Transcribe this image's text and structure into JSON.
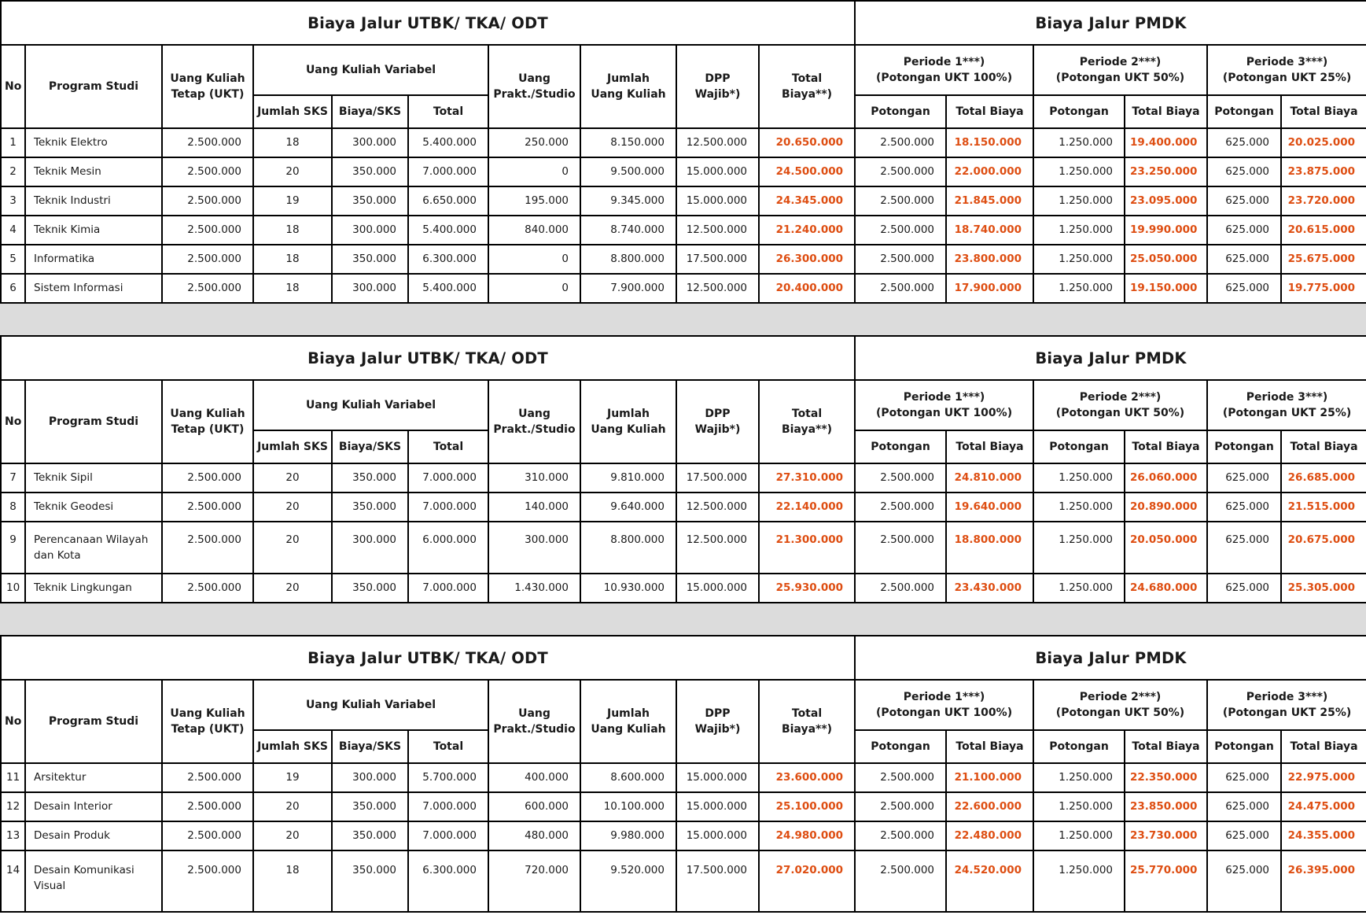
{
  "colors": {
    "accent": "#DE4E12",
    "separator": "#DCDCDC",
    "border": "#000000",
    "text": "#1A1A1A"
  },
  "titles": {
    "utbk": "Biaya Jalur UTBK/ TKA/ ODT",
    "pmdk": "Biaya Jalur PMDK"
  },
  "header": {
    "no": "No",
    "program_studi": "Program Studi",
    "ukt": "Uang Kuliah\nTetap (UKT)",
    "uang_kuliah_variabel": "Uang Kuliah Variabel",
    "jumlah_sks": "Jumlah SKS",
    "biaya_sks": "Biaya/SKS",
    "total": "Total",
    "uang_prakt": "Uang\nPrakt./Studio",
    "jumlah_uang_kuliah": "Jumlah\nUang Kuliah",
    "dpp": "DPP\nWajib*)",
    "total_biaya": "Total\nBiaya**)",
    "periode_1": "Periode 1***)\n(Potongan UKT 100%)",
    "periode_2": "Periode 2***)\n(Potongan UKT 50%)",
    "periode_3": "Periode 3***)\n(Potongan UKT 25%)",
    "potongan": "Potongan",
    "total_biaya_pmdk": "Total Biaya"
  },
  "tables": [
    {
      "rows": [
        {
          "no": "1",
          "program": "Teknik Elektro",
          "ukt": "2.500.000",
          "jumlah_sks": "18",
          "biaya_sks": "300.000",
          "total_variabel": "5.400.000",
          "uang_prakt": "250.000",
          "jumlah_uang_kuliah": "8.150.000",
          "dpp": "12.500.000",
          "total_biaya": "20.650.000",
          "p1_potongan": "2.500.000",
          "p1_total": "18.150.000",
          "p2_potongan": "1.250.000",
          "p2_total": "19.400.000",
          "p3_potongan": "625.000",
          "p3_total": "20.025.000"
        },
        {
          "no": "2",
          "program": "Teknik Mesin",
          "ukt": "2.500.000",
          "jumlah_sks": "20",
          "biaya_sks": "350.000",
          "total_variabel": "7.000.000",
          "uang_prakt": "0",
          "jumlah_uang_kuliah": "9.500.000",
          "dpp": "15.000.000",
          "total_biaya": "24.500.000",
          "p1_potongan": "2.500.000",
          "p1_total": "22.000.000",
          "p2_potongan": "1.250.000",
          "p2_total": "23.250.000",
          "p3_potongan": "625.000",
          "p3_total": "23.875.000"
        },
        {
          "no": "3",
          "program": "Teknik Industri",
          "ukt": "2.500.000",
          "jumlah_sks": "19",
          "biaya_sks": "350.000",
          "total_variabel": "6.650.000",
          "uang_prakt": "195.000",
          "jumlah_uang_kuliah": "9.345.000",
          "dpp": "15.000.000",
          "total_biaya": "24.345.000",
          "p1_potongan": "2.500.000",
          "p1_total": "21.845.000",
          "p2_potongan": "1.250.000",
          "p2_total": "23.095.000",
          "p3_potongan": "625.000",
          "p3_total": "23.720.000"
        },
        {
          "no": "4",
          "program": "Teknik Kimia",
          "ukt": "2.500.000",
          "jumlah_sks": "18",
          "biaya_sks": "300.000",
          "total_variabel": "5.400.000",
          "uang_prakt": "840.000",
          "jumlah_uang_kuliah": "8.740.000",
          "dpp": "12.500.000",
          "total_biaya": "21.240.000",
          "p1_potongan": "2.500.000",
          "p1_total": "18.740.000",
          "p2_potongan": "1.250.000",
          "p2_total": "19.990.000",
          "p3_potongan": "625.000",
          "p3_total": "20.615.000"
        },
        {
          "no": "5",
          "program": "Informatika",
          "ukt": "2.500.000",
          "jumlah_sks": "18",
          "biaya_sks": "350.000",
          "total_variabel": "6.300.000",
          "uang_prakt": "0",
          "jumlah_uang_kuliah": "8.800.000",
          "dpp": "17.500.000",
          "total_biaya": "26.300.000",
          "p1_potongan": "2.500.000",
          "p1_total": "23.800.000",
          "p2_potongan": "1.250.000",
          "p2_total": "25.050.000",
          "p3_potongan": "625.000",
          "p3_total": "25.675.000"
        },
        {
          "no": "6",
          "program": "Sistem Informasi",
          "ukt": "2.500.000",
          "jumlah_sks": "18",
          "biaya_sks": "300.000",
          "total_variabel": "5.400.000",
          "uang_prakt": "0",
          "jumlah_uang_kuliah": "7.900.000",
          "dpp": "12.500.000",
          "total_biaya": "20.400.000",
          "p1_potongan": "2.500.000",
          "p1_total": "17.900.000",
          "p2_potongan": "1.250.000",
          "p2_total": "19.150.000",
          "p3_potongan": "625.000",
          "p3_total": "19.775.000"
        }
      ]
    },
    {
      "rows": [
        {
          "no": "7",
          "program": "Teknik Sipil",
          "ukt": "2.500.000",
          "jumlah_sks": "20",
          "biaya_sks": "350.000",
          "total_variabel": "7.000.000",
          "uang_prakt": "310.000",
          "jumlah_uang_kuliah": "9.810.000",
          "dpp": "17.500.000",
          "total_biaya": "27.310.000",
          "p1_potongan": "2.500.000",
          "p1_total": "24.810.000",
          "p2_potongan": "1.250.000",
          "p2_total": "26.060.000",
          "p3_potongan": "625.000",
          "p3_total": "26.685.000"
        },
        {
          "no": "8",
          "program": "Teknik Geodesi",
          "ukt": "2.500.000",
          "jumlah_sks": "20",
          "biaya_sks": "350.000",
          "total_variabel": "7.000.000",
          "uang_prakt": "140.000",
          "jumlah_uang_kuliah": "9.640.000",
          "dpp": "12.500.000",
          "total_biaya": "22.140.000",
          "p1_potongan": "2.500.000",
          "p1_total": "19.640.000",
          "p2_potongan": "1.250.000",
          "p2_total": "20.890.000",
          "p3_potongan": "625.000",
          "p3_total": "21.515.000"
        },
        {
          "no": "9",
          "program": "Perencanaan Wilayah dan Kota",
          "ukt": "2.500.000",
          "jumlah_sks": "20",
          "biaya_sks": "300.000",
          "total_variabel": "6.000.000",
          "uang_prakt": "300.000",
          "jumlah_uang_kuliah": "8.800.000",
          "dpp": "12.500.000",
          "total_biaya": "21.300.000",
          "p1_potongan": "2.500.000",
          "p1_total": "18.800.000",
          "p2_potongan": "1.250.000",
          "p2_total": "20.050.000",
          "p3_potongan": "625.000",
          "p3_total": "20.675.000"
        },
        {
          "no": "10",
          "program": "Teknik Lingkungan",
          "ukt": "2.500.000",
          "jumlah_sks": "20",
          "biaya_sks": "350.000",
          "total_variabel": "7.000.000",
          "uang_prakt": "1.430.000",
          "jumlah_uang_kuliah": "10.930.000",
          "dpp": "15.000.000",
          "total_biaya": "25.930.000",
          "p1_potongan": "2.500.000",
          "p1_total": "23.430.000",
          "p2_potongan": "1.250.000",
          "p2_total": "24.680.000",
          "p3_potongan": "625.000",
          "p3_total": "25.305.000"
        }
      ]
    },
    {
      "rows": [
        {
          "no": "11",
          "program": "Arsitektur",
          "ukt": "2.500.000",
          "jumlah_sks": "19",
          "biaya_sks": "300.000",
          "total_variabel": "5.700.000",
          "uang_prakt": "400.000",
          "jumlah_uang_kuliah": "8.600.000",
          "dpp": "15.000.000",
          "total_biaya": "23.600.000",
          "p1_potongan": "2.500.000",
          "p1_total": "21.100.000",
          "p2_potongan": "1.250.000",
          "p2_total": "22.350.000",
          "p3_potongan": "625.000",
          "p3_total": "22.975.000"
        },
        {
          "no": "12",
          "program": "Desain Interior",
          "ukt": "2.500.000",
          "jumlah_sks": "20",
          "biaya_sks": "350.000",
          "total_variabel": "7.000.000",
          "uang_prakt": "600.000",
          "jumlah_uang_kuliah": "10.100.000",
          "dpp": "15.000.000",
          "total_biaya": "25.100.000",
          "p1_potongan": "2.500.000",
          "p1_total": "22.600.000",
          "p2_potongan": "1.250.000",
          "p2_total": "23.850.000",
          "p3_potongan": "625.000",
          "p3_total": "24.475.000"
        },
        {
          "no": "13",
          "program": "Desain Produk",
          "ukt": "2.500.000",
          "jumlah_sks": "20",
          "biaya_sks": "350.000",
          "total_variabel": "7.000.000",
          "uang_prakt": "480.000",
          "jumlah_uang_kuliah": "9.980.000",
          "dpp": "15.000.000",
          "total_biaya": "24.980.000",
          "p1_potongan": "2.500.000",
          "p1_total": "22.480.000",
          "p2_potongan": "1.250.000",
          "p2_total": "23.730.000",
          "p3_potongan": "625.000",
          "p3_total": "24.355.000"
        },
        {
          "no": "14",
          "program": "Desain Komunikasi Visual",
          "ukt": "2.500.000",
          "jumlah_sks": "18",
          "biaya_sks": "350.000",
          "total_variabel": "6.300.000",
          "uang_prakt": "720.000",
          "jumlah_uang_kuliah": "9.520.000",
          "dpp": "17.500.000",
          "total_biaya": "27.020.000",
          "p1_potongan": "2.500.000",
          "p1_total": "24.520.000",
          "p2_potongan": "1.250.000",
          "p2_total": "25.770.000",
          "p3_potongan": "625.000",
          "p3_total": "26.395.000"
        }
      ]
    }
  ]
}
